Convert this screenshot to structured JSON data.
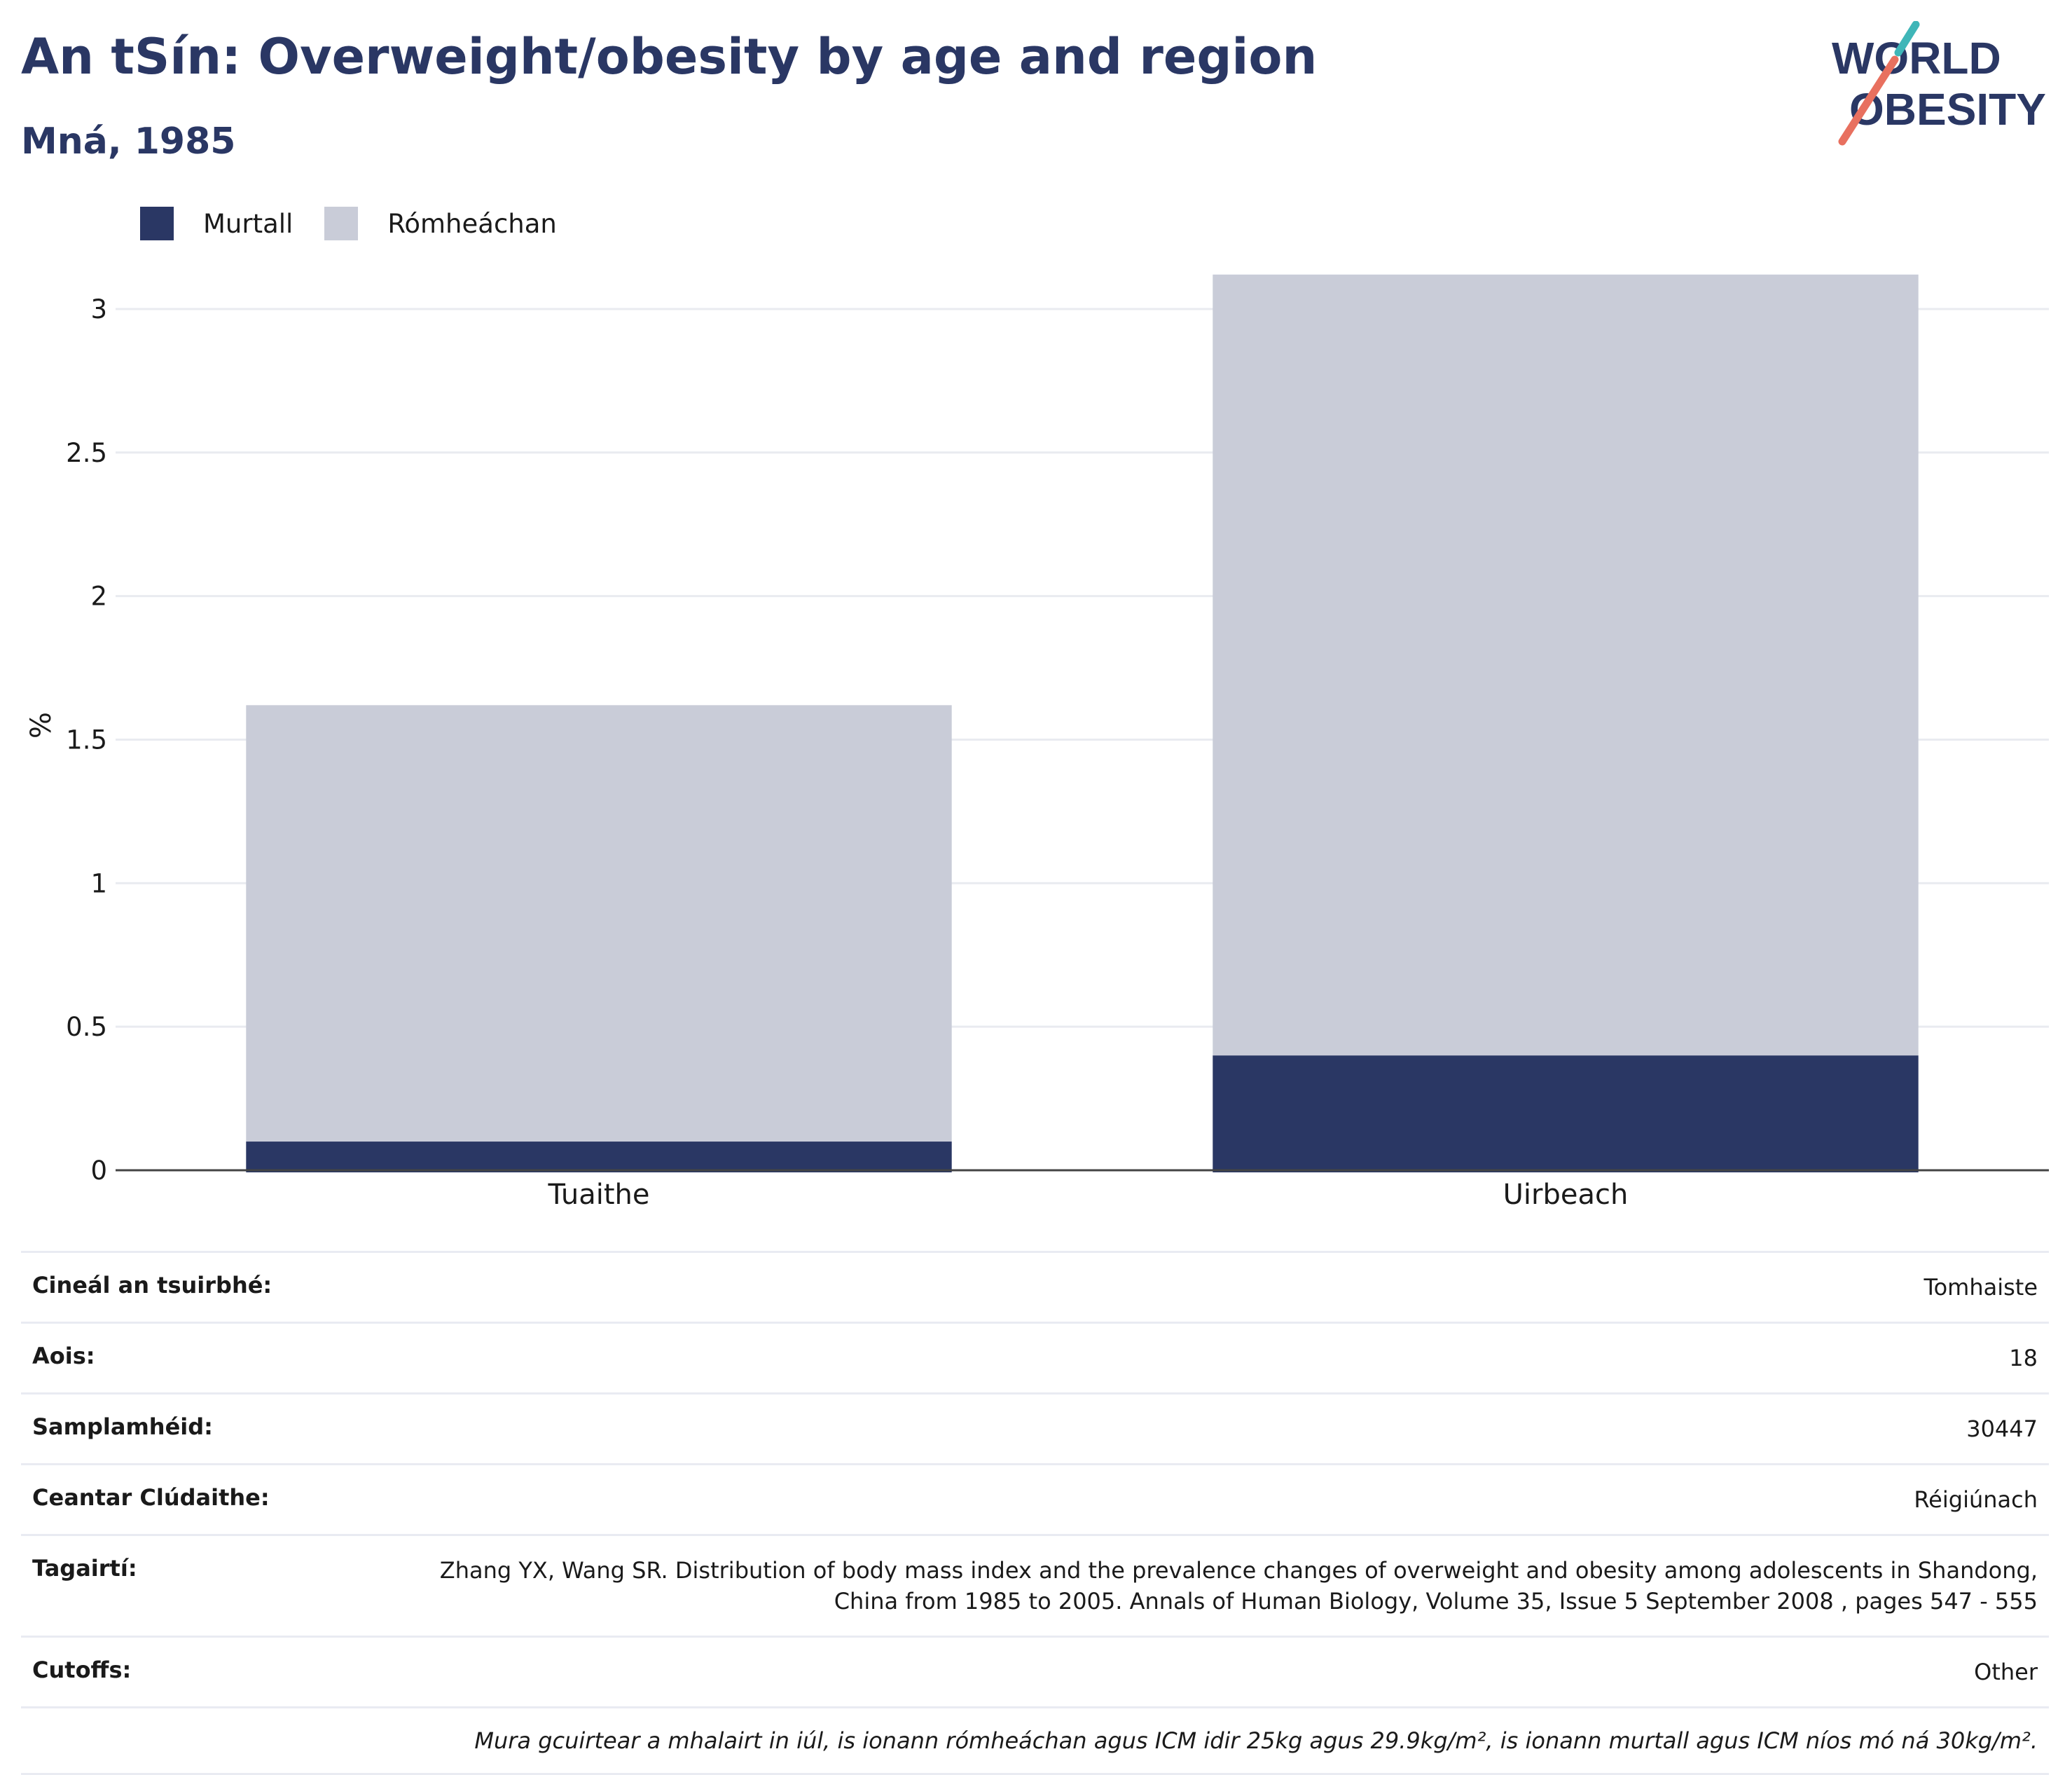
{
  "header": {
    "title": "An tSín: Overweight/obesity by age and region",
    "subtitle": "Mná, 1985",
    "logo_line1": "WORLD",
    "logo_line2": "OBESITY"
  },
  "colors": {
    "obese": "#2a3764",
    "overweight": "#c9ccd8",
    "title": "#2a3764",
    "logo_teal": "#3fb6b8",
    "logo_coral": "#e8705f"
  },
  "legend": {
    "items": [
      {
        "label": "Murtall",
        "color": "#2a3764"
      },
      {
        "label": "Rómheáchan",
        "color": "#c9ccd8"
      }
    ]
  },
  "chart_data": {
    "type": "bar",
    "stacked": true,
    "categories": [
      "Tuaithe",
      "Uirbeach"
    ],
    "series": [
      {
        "name": "Murtall",
        "values": [
          0.1,
          0.4
        ]
      },
      {
        "name": "Rómheáchan",
        "values": [
          1.52,
          2.72
        ]
      }
    ],
    "ylabel": "%",
    "ylim": [
      0,
      3.1
    ],
    "yticks": [
      0,
      0.5,
      1,
      1.5,
      2,
      2.5,
      3
    ],
    "ytick_labels": [
      "0",
      "0.5",
      "1",
      "1.5",
      "2",
      "2.5",
      "3"
    ],
    "grid": true,
    "legend_position": "top-left"
  },
  "info": {
    "rows": [
      {
        "label": "Cineál an tsuirbhé:",
        "value": "Tomhaiste"
      },
      {
        "label": "Aois:",
        "value": "18"
      },
      {
        "label": "Samplamhéid:",
        "value": "30447"
      },
      {
        "label": "Ceantar Clúdaithe:",
        "value": "Réigiúnach"
      },
      {
        "label": "Tagairtí:",
        "value": "Zhang YX, Wang SR. Distribution of body mass index and the prevalence changes of overweight and obesity among adolescents in Shandong, China from 1985 to 2005. Annals of Human Biology, Volume 35, Issue 5 September 2008 , pages 547 - 555"
      },
      {
        "label": "Cutoffs:",
        "value": "Other"
      }
    ],
    "note": "Mura gcuirtear a mhalairt in iúl, is ionann rómheáchan agus ICM idir 25kg agus 29.9kg/m², is ionann murtall agus ICM níos mó ná 30kg/m²."
  }
}
